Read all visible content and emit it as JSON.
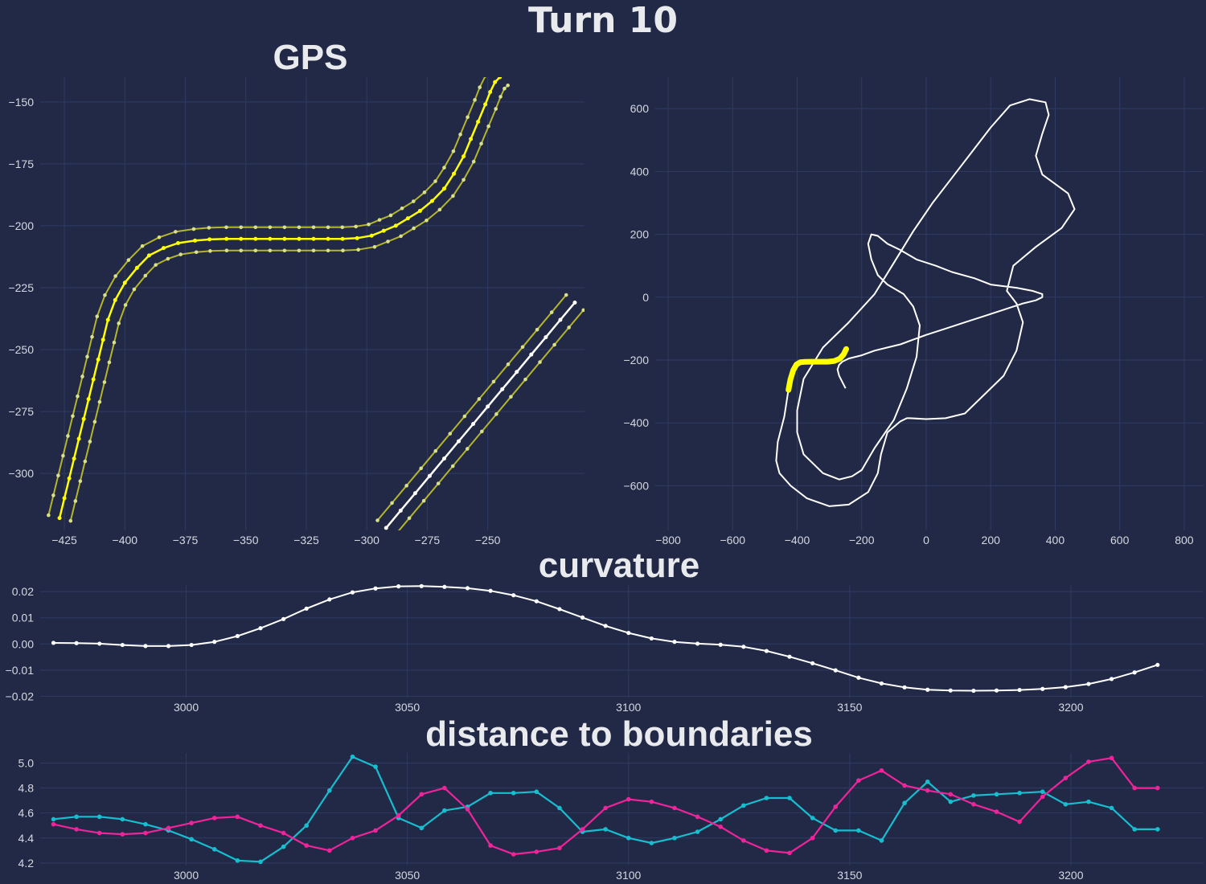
{
  "titles": {
    "main": "Turn 10",
    "gps": "GPS",
    "curvature": "curvature",
    "distance": "distance to boundaries"
  },
  "colors": {
    "background": "#212946",
    "grid": "#2f3b63",
    "centerline": "#ffffff",
    "turn_highlight": "#ffff00",
    "boundary": "#b5b52c",
    "boundary_points": "#d9e08a",
    "left_distance": "#17becf",
    "right_distance": "#f0249a"
  },
  "chart_data": [
    {
      "type": "line",
      "name": "gps",
      "title": "GPS",
      "xlim": [
        -435,
        -210
      ],
      "ylim": [
        -323,
        -140
      ],
      "xticks": [
        -425,
        -400,
        -375,
        -350,
        -325,
        -300,
        -275,
        -250
      ],
      "yticks": [
        -150,
        -175,
        -200,
        -225,
        -250,
        -275,
        -300
      ],
      "turn_x": [
        -427,
        -425,
        -423,
        -421,
        -419,
        -417,
        -415,
        -413,
        -411,
        -409,
        -407,
        -404,
        -400,
        -395,
        -390,
        -384,
        -378,
        -371,
        -365,
        -358,
        -352,
        -346,
        -340,
        -334,
        -328,
        -322,
        -316,
        -310,
        -304,
        -298,
        -293,
        -288,
        -283,
        -278,
        -273,
        -268,
        -264,
        -260,
        -257,
        -254,
        -251,
        -249,
        -247,
        -245
      ],
      "turn_y": [
        -318,
        -310,
        -302,
        -294,
        -286,
        -278,
        -270,
        -262,
        -254,
        -246,
        -238,
        -230,
        -223,
        -217,
        -212,
        -209,
        -207,
        -206,
        -205.5,
        -205.3,
        -205.3,
        -205.3,
        -205.3,
        -205.3,
        -205.3,
        -205.3,
        -205.3,
        -205.3,
        -205,
        -204,
        -202,
        -200,
        -197,
        -194,
        -190,
        -185,
        -179,
        -172,
        -165,
        -158,
        -151,
        -146,
        -142,
        -140
      ],
      "straight_x": [
        -292,
        -286,
        -280,
        -274,
        -268,
        -262,
        -256,
        -250,
        -244,
        -238,
        -232,
        -226,
        -220,
        -214
      ],
      "straight_y": [
        -322,
        -315,
        -308,
        -301,
        -294,
        -287,
        -280,
        -273,
        -266,
        -259,
        -252,
        -245,
        -238,
        -231
      ],
      "boundary_offset": 4.7
    },
    {
      "type": "line",
      "name": "track_map",
      "xlim": [
        -840,
        860
      ],
      "ylim": [
        -742,
        700
      ],
      "xticks": [
        -800,
        -600,
        -400,
        -200,
        0,
        200,
        400,
        600,
        800
      ],
      "yticks": [
        600,
        400,
        200,
        0,
        -200,
        -400,
        -600
      ],
      "track_x": [
        -428,
        -440,
        -460,
        -465,
        -455,
        -420,
        -370,
        -300,
        -240,
        -180,
        -150,
        -140,
        -120,
        -80,
        -60,
        -50,
        0,
        60,
        120,
        240,
        280,
        300,
        280,
        250,
        270,
        340,
        420,
        460,
        440,
        360,
        340,
        360,
        380,
        370,
        320,
        260,
        200,
        140,
        80,
        20,
        -40,
        -100,
        -160,
        -240,
        -320,
        -380,
        -400,
        -400,
        -380,
        -320,
        -270,
        -230,
        -200,
        -160,
        -100,
        -60,
        -30,
        -20,
        -40,
        -70,
        -120,
        -150,
        -170,
        -180,
        -170,
        -150,
        -120,
        -80,
        -30,
        30,
        80,
        150,
        200,
        280,
        330,
        360,
        360,
        340,
        300,
        240,
        180,
        120,
        60,
        0,
        -40,
        -80,
        -120,
        -160,
        -200,
        -240,
        -260,
        -270,
        -275,
        -270,
        -260,
        -250
      ],
      "track_y": [
        -300,
        -380,
        -460,
        -520,
        -560,
        -600,
        -640,
        -665,
        -660,
        -620,
        -560,
        -500,
        -430,
        -395,
        -385,
        -385,
        -388,
        -385,
        -370,
        -250,
        -170,
        -80,
        -20,
        20,
        100,
        160,
        220,
        280,
        330,
        390,
        450,
        520,
        580,
        620,
        630,
        610,
        540,
        460,
        380,
        300,
        210,
        110,
        10,
        -80,
        -160,
        -260,
        -360,
        -430,
        -500,
        -560,
        -580,
        -570,
        -550,
        -480,
        -390,
        -290,
        -190,
        -90,
        -30,
        10,
        40,
        70,
        120,
        170,
        200,
        195,
        170,
        150,
        120,
        100,
        80,
        60,
        40,
        30,
        20,
        10,
        0,
        -10,
        -20,
        -40,
        -60,
        -80,
        -100,
        -120,
        -135,
        -150,
        -160,
        -170,
        -185,
        -195,
        -205,
        -215,
        -230,
        -250,
        -270,
        -290
      ],
      "highlight_x": [
        -427,
        -421,
        -412,
        -402,
        -390,
        -375,
        -355,
        -330,
        -305,
        -285,
        -268,
        -256,
        -248
      ],
      "highlight_y": [
        -295,
        -262,
        -232,
        -214,
        -207,
        -205.5,
        -205.3,
        -205.3,
        -205.3,
        -203,
        -196,
        -182,
        -165
      ]
    },
    {
      "type": "line",
      "name": "curvature",
      "title": "curvature",
      "xlim": [
        2967,
        3230
      ],
      "ylim": [
        -0.0205,
        0.0225
      ],
      "xticks": [
        3000,
        3050,
        3100,
        3150,
        3200
      ],
      "yticks": [
        0.02,
        0.01,
        0.0,
        -0.01,
        -0.02
      ],
      "ytick_labels": [
        "0.02",
        "0.01",
        "0.00",
        "−0.01",
        "−0.02"
      ],
      "x": [
        2970,
        2975.2,
        2980.4,
        2985.6,
        2990.8,
        2996,
        3001.2,
        3006.4,
        3011.6,
        3016.8,
        3022,
        3027.2,
        3032.4,
        3037.6,
        3042.8,
        3048,
        3053.2,
        3058.4,
        3063.6,
        3068.8,
        3074,
        3079.2,
        3084.4,
        3089.6,
        3094.8,
        3100,
        3105.2,
        3110.4,
        3115.6,
        3120.8,
        3126,
        3131.2,
        3136.4,
        3141.6,
        3146.8,
        3152,
        3157.2,
        3162.4,
        3167.6,
        3172.8,
        3178,
        3183.2,
        3188.4,
        3193.6,
        3198.8,
        3204,
        3209.2,
        3214.4,
        3219.6
      ],
      "y": [
        0.0004,
        0.0003,
        0.0001,
        -0.0004,
        -0.0008,
        -0.0008,
        -0.0004,
        0.0008,
        0.003,
        0.006,
        0.0095,
        0.0135,
        0.017,
        0.0197,
        0.0212,
        0.022,
        0.0221,
        0.0218,
        0.0213,
        0.0203,
        0.0186,
        0.0163,
        0.0133,
        0.0101,
        0.0069,
        0.0042,
        0.0021,
        0.0008,
        0.0001,
        -0.0003,
        -0.0011,
        -0.0027,
        -0.0049,
        -0.0074,
        -0.0101,
        -0.0129,
        -0.0151,
        -0.0166,
        -0.0175,
        -0.0178,
        -0.0179,
        -0.0178,
        -0.0176,
        -0.0172,
        -0.0165,
        -0.0153,
        -0.0134,
        -0.0109,
        -0.008
      ]
    },
    {
      "type": "line",
      "name": "distance_to_boundaries",
      "title": "distance to boundaries",
      "xlim": [
        2967,
        3230
      ],
      "ylim": [
        4.18,
        5.08
      ],
      "xticks": [
        3000,
        3050,
        3100,
        3150,
        3200
      ],
      "yticks": [
        5.0,
        4.8,
        4.6,
        4.4,
        4.2
      ],
      "ytick_labels": [
        "5.0",
        "4.8",
        "4.6",
        "4.4",
        "4.2"
      ],
      "x": [
        2970,
        2975.2,
        2980.4,
        2985.6,
        2990.8,
        2996,
        3001.2,
        3006.4,
        3011.6,
        3016.8,
        3022,
        3027.2,
        3032.4,
        3037.6,
        3042.8,
        3048,
        3053.2,
        3058.4,
        3063.6,
        3068.8,
        3074,
        3079.2,
        3084.4,
        3089.6,
        3094.8,
        3100,
        3105.2,
        3110.4,
        3115.6,
        3120.8,
        3126,
        3131.2,
        3136.4,
        3141.6,
        3146.8,
        3152,
        3157.2,
        3162.4,
        3167.6,
        3172.8,
        3178,
        3183.2,
        3188.4,
        3193.6,
        3198.8,
        3204,
        3209.2,
        3214.4,
        3219.6
      ],
      "series": [
        {
          "key": "cyan",
          "values": [
            4.55,
            4.57,
            4.57,
            4.55,
            4.51,
            4.46,
            4.39,
            4.31,
            4.22,
            4.21,
            4.33,
            4.5,
            4.78,
            5.05,
            4.97,
            4.56,
            4.48,
            4.62,
            4.65,
            4.76,
            4.76,
            4.77,
            4.64,
            4.45,
            4.47,
            4.4,
            4.36,
            4.4,
            4.45,
            4.55,
            4.66,
            4.72,
            4.72,
            4.56,
            4.46,
            4.46,
            4.38,
            4.68,
            4.85,
            4.69,
            4.74,
            4.75,
            4.76,
            4.77,
            4.67,
            4.69,
            4.64,
            4.47,
            4.47
          ]
        },
        {
          "key": "magenta",
          "values": [
            4.51,
            4.47,
            4.44,
            4.43,
            4.44,
            4.48,
            4.52,
            4.56,
            4.57,
            4.5,
            4.44,
            4.34,
            4.3,
            4.4,
            4.46,
            4.58,
            4.75,
            4.8,
            4.63,
            4.34,
            4.27,
            4.29,
            4.32,
            4.47,
            4.64,
            4.71,
            4.69,
            4.64,
            4.57,
            4.49,
            4.38,
            4.3,
            4.28,
            4.4,
            4.65,
            4.86,
            4.94,
            4.82,
            4.78,
            4.75,
            4.67,
            4.61,
            4.53,
            4.73,
            4.88,
            5.01,
            5.04,
            4.8,
            4.8
          ]
        }
      ]
    }
  ]
}
